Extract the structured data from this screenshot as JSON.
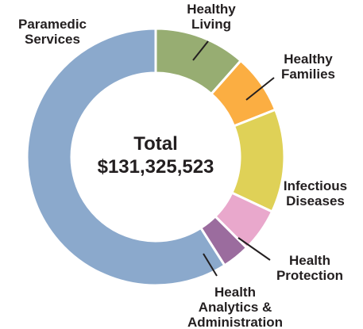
{
  "chart_data": {
    "type": "pie",
    "variant": "donut",
    "center_label": [
      "Total",
      "$131,325,523"
    ],
    "slices": [
      {
        "label": [
          "Healthy",
          "Living"
        ],
        "value": 11.5,
        "color": "#97ad72"
      },
      {
        "label": [
          "Healthy",
          "Families"
        ],
        "value": 7.5,
        "color": "#fbae42"
      },
      {
        "label": [
          "Infectious",
          "Diseases"
        ],
        "value": 13.0,
        "color": "#dfd157"
      },
      {
        "label": [
          "Health",
          "Protection"
        ],
        "value": 5.5,
        "color": "#e9a8cc"
      },
      {
        "label": [
          "Health",
          "Analytics &",
          "Administration"
        ],
        "value": 3.5,
        "color": "#9b6c9e"
      },
      {
        "label": [
          "Paramedic",
          "Services"
        ],
        "value": 59.0,
        "color": "#8ba9cc"
      }
    ],
    "legend": "none",
    "grid": false
  }
}
